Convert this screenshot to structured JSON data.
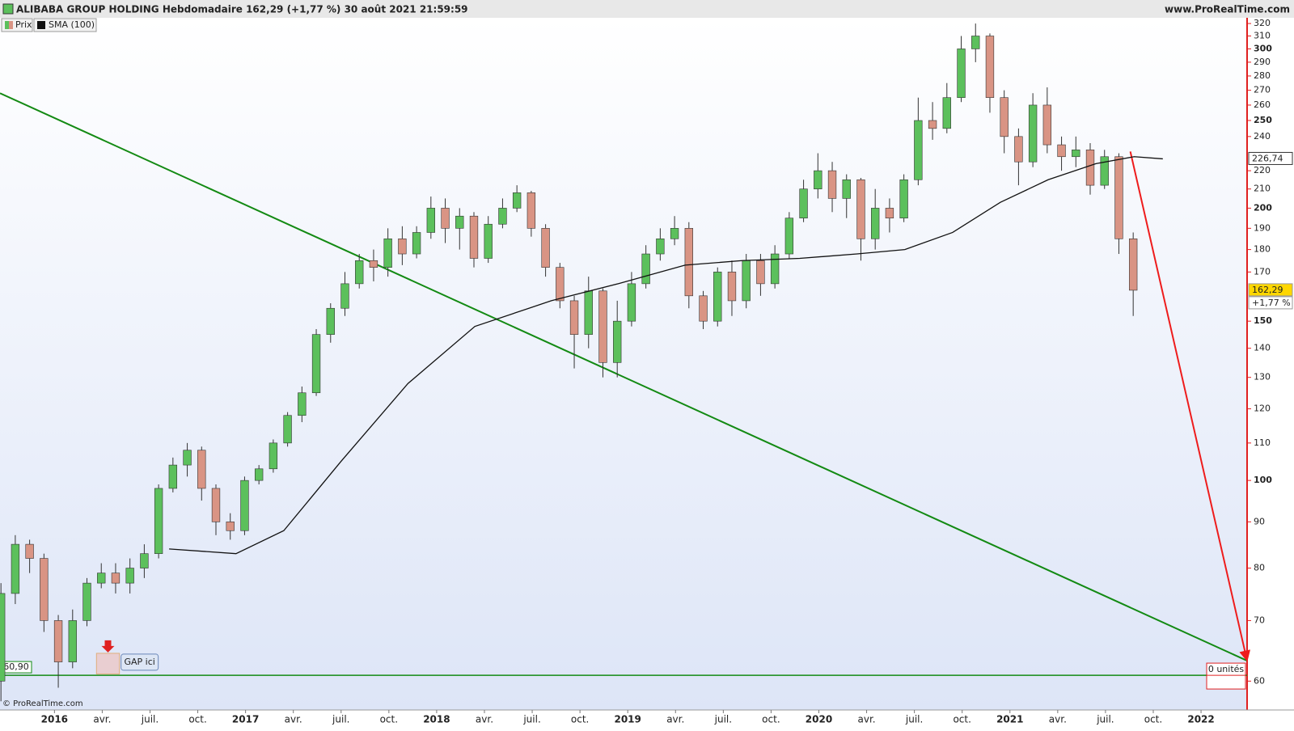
{
  "chart_data": {
    "type": "candlestick",
    "title": "ALIBABA GROUP HOLDING Hebdomadaire 162,29 (+1,77 %) 30 août 2021 21:59:59",
    "source": "www.ProRealTime.com",
    "copyright": "© ProRealTime.com",
    "log_scale": true,
    "xlim": [
      2015.715,
      2022.241
    ],
    "ylim": [
      55.75,
      324.7
    ],
    "xticks": [
      2016,
      {
        "value": 2016.25,
        "label": "avr."
      },
      {
        "value": 2016.5,
        "label": "juil."
      },
      {
        "value": 2016.75,
        "label": "oct."
      },
      2017,
      {
        "value": 2017.25,
        "label": "avr."
      },
      {
        "value": 2017.5,
        "label": "juil."
      },
      {
        "value": 2017.75,
        "label": "oct."
      },
      2018,
      {
        "value": 2018.25,
        "label": "avr."
      },
      {
        "value": 2018.5,
        "label": "juil."
      },
      {
        "value": 2018.75,
        "label": "oct."
      },
      2019,
      {
        "value": 2019.25,
        "label": "avr."
      },
      {
        "value": 2019.5,
        "label": "juil."
      },
      {
        "value": 2019.75,
        "label": "oct."
      },
      2020,
      {
        "value": 2020.25,
        "label": "avr."
      },
      {
        "value": 2020.5,
        "label": "juil."
      },
      {
        "value": 2020.75,
        "label": "oct."
      },
      2021,
      {
        "value": 2021.25,
        "label": "avr."
      },
      {
        "value": 2021.5,
        "label": "juil."
      },
      {
        "value": 2021.75,
        "label": "oct."
      },
      2022
    ],
    "yticks": [
      60,
      70,
      80,
      90,
      100,
      110,
      120,
      130,
      140,
      150,
      170,
      180,
      190,
      200,
      210,
      220,
      240,
      250,
      260,
      270,
      280,
      290,
      300,
      310,
      320
    ],
    "series": [
      {
        "name": "Prix",
        "type": "candlestick",
        "up_color": "#5cc05c",
        "down_color": "#d99484",
        "candles": [
          [
            2015.72,
            60,
            77,
            57,
            75
          ],
          [
            2015.795,
            75,
            87,
            73,
            85
          ],
          [
            2015.87,
            85,
            86,
            79,
            82
          ],
          [
            2015.945,
            82,
            83,
            68,
            70
          ],
          [
            2016.02,
            70,
            71,
            59,
            63
          ],
          [
            2016.095,
            63,
            72,
            62,
            70
          ],
          [
            2016.17,
            70,
            78,
            69,
            77
          ],
          [
            2016.245,
            77,
            81,
            76,
            79
          ],
          [
            2016.32,
            79,
            81,
            75,
            77
          ],
          [
            2016.395,
            77,
            82,
            75,
            80
          ],
          [
            2016.47,
            80,
            85,
            78,
            83
          ],
          [
            2016.545,
            83,
            99,
            82,
            98
          ],
          [
            2016.62,
            98,
            106,
            97,
            104
          ],
          [
            2016.695,
            104,
            110,
            101,
            108
          ],
          [
            2016.77,
            108,
            109,
            95,
            98
          ],
          [
            2016.845,
            98,
            99,
            87,
            90
          ],
          [
            2016.92,
            90,
            92,
            86,
            88
          ],
          [
            2016.995,
            88,
            101,
            87,
            100
          ],
          [
            2017.07,
            100,
            104,
            99,
            103
          ],
          [
            2017.145,
            103,
            111,
            102,
            110
          ],
          [
            2017.22,
            110,
            119,
            109,
            118
          ],
          [
            2017.295,
            118,
            127,
            116,
            125
          ],
          [
            2017.37,
            125,
            147,
            124,
            145
          ],
          [
            2017.445,
            145,
            157,
            142,
            155
          ],
          [
            2017.52,
            155,
            170,
            152,
            165
          ],
          [
            2017.595,
            165,
            178,
            163,
            175
          ],
          [
            2017.67,
            175,
            180,
            166,
            172
          ],
          [
            2017.745,
            172,
            190,
            168,
            185
          ],
          [
            2017.82,
            185,
            191,
            173,
            178
          ],
          [
            2017.895,
            178,
            191,
            176,
            188
          ],
          [
            2017.97,
            188,
            206,
            185,
            200
          ],
          [
            2018.045,
            200,
            205,
            183,
            190
          ],
          [
            2018.12,
            190,
            200,
            180,
            196
          ],
          [
            2018.195,
            196,
            198,
            172,
            176
          ],
          [
            2018.27,
            176,
            196,
            174,
            192
          ],
          [
            2018.345,
            192,
            205,
            190,
            200
          ],
          [
            2018.42,
            200,
            212,
            198,
            208
          ],
          [
            2018.495,
            208,
            209,
            186,
            190
          ],
          [
            2018.57,
            190,
            192,
            168,
            172
          ],
          [
            2018.645,
            172,
            174,
            155,
            158
          ],
          [
            2018.72,
            158,
            160,
            133,
            145
          ],
          [
            2018.795,
            145,
            168,
            140,
            162
          ],
          [
            2018.87,
            162,
            163,
            130,
            135
          ],
          [
            2018.945,
            135,
            158,
            130,
            150
          ],
          [
            2019.02,
            150,
            170,
            148,
            165
          ],
          [
            2019.095,
            165,
            182,
            163,
            178
          ],
          [
            2019.17,
            178,
            190,
            175,
            185
          ],
          [
            2019.245,
            185,
            196,
            182,
            190
          ],
          [
            2019.32,
            190,
            193,
            155,
            160
          ],
          [
            2019.395,
            160,
            162,
            147,
            150
          ],
          [
            2019.47,
            150,
            172,
            148,
            170
          ],
          [
            2019.545,
            170,
            175,
            152,
            158
          ],
          [
            2019.62,
            158,
            178,
            155,
            175
          ],
          [
            2019.695,
            175,
            178,
            160,
            165
          ],
          [
            2019.77,
            165,
            182,
            163,
            178
          ],
          [
            2019.845,
            178,
            198,
            176,
            195
          ],
          [
            2019.92,
            195,
            215,
            193,
            210
          ],
          [
            2019.995,
            210,
            230,
            205,
            220
          ],
          [
            2020.07,
            220,
            225,
            198,
            205
          ],
          [
            2020.145,
            205,
            218,
            195,
            215
          ],
          [
            2020.22,
            215,
            216,
            175,
            185
          ],
          [
            2020.295,
            185,
            210,
            180,
            200
          ],
          [
            2020.37,
            200,
            205,
            188,
            195
          ],
          [
            2020.445,
            195,
            218,
            193,
            215
          ],
          [
            2020.52,
            215,
            265,
            212,
            250
          ],
          [
            2020.595,
            250,
            262,
            238,
            245
          ],
          [
            2020.67,
            245,
            275,
            242,
            265
          ],
          [
            2020.745,
            265,
            310,
            262,
            300
          ],
          [
            2020.82,
            300,
            320,
            290,
            310
          ],
          [
            2020.895,
            310,
            312,
            255,
            265
          ],
          [
            2020.97,
            265,
            270,
            230,
            240
          ],
          [
            2021.045,
            240,
            245,
            212,
            225
          ],
          [
            2021.12,
            225,
            268,
            222,
            260
          ],
          [
            2021.195,
            260,
            272,
            230,
            235
          ],
          [
            2021.27,
            235,
            240,
            220,
            228
          ],
          [
            2021.345,
            228,
            240,
            222,
            232
          ],
          [
            2021.42,
            232,
            236,
            207,
            212
          ],
          [
            2021.495,
            212,
            232,
            210,
            228
          ],
          [
            2021.57,
            228,
            230,
            178,
            185
          ],
          [
            2021.645,
            185,
            188,
            152,
            162.29
          ]
        ],
        "last_label": "162,29",
        "change": {
          "value": 1.77,
          "label": "+1,77 %"
        }
      },
      {
        "name": "SMA (100)",
        "type": "line",
        "color": "#111111",
        "x": [
          2016.6,
          2016.95,
          2017.2,
          2017.5,
          2017.85,
          2018.2,
          2018.6,
          2018.95,
          2019.3,
          2019.6,
          2019.9,
          2020.2,
          2020.45,
          2020.7,
          2020.95,
          2021.2,
          2021.45,
          2021.65,
          2021.8
        ],
        "values": [
          84,
          83,
          88,
          105,
          128,
          148,
          158,
          165,
          173,
          175,
          176,
          178,
          180,
          188,
          203,
          215,
          224,
          228,
          226.74
        ],
        "last_label": "226,74"
      }
    ],
    "lines": [
      {
        "color": "#138a13",
        "x": [
          2015.715,
          2022.241
        ],
        "values": [
          268,
          63.2
        ]
      },
      {
        "color": "#ee1c1c",
        "x": [
          2021.63,
          2022.241
        ],
        "values": [
          231,
          63.2
        ],
        "arrow": true
      }
    ],
    "hline": {
      "value": 60.9,
      "label": "60,90",
      "color": "#138a13"
    },
    "gap": {
      "text": "GAP ici",
      "x": [
        2016.22,
        2016.34
      ],
      "y": [
        61.1,
        64.4
      ]
    },
    "position_label": "0 unités"
  }
}
